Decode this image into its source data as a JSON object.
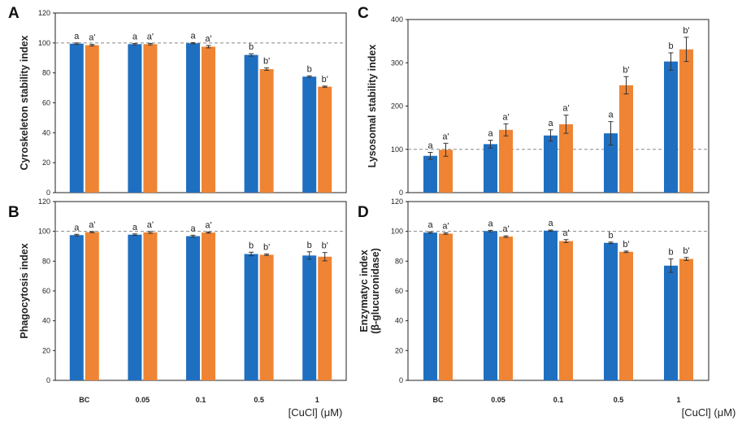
{
  "colors": {
    "series1": "#1f6fc1",
    "series2": "#ef8434",
    "axis": "#222222",
    "reference": "#888888",
    "errorbar": "#333333"
  },
  "x_axis_title": "[CuCl] (μM)",
  "chart_data": [
    {
      "panel": "A",
      "type": "bar",
      "ylabel": "Cyroskeleton stability index",
      "categories": [
        "BC",
        "0.05",
        "0.1",
        "0.5",
        "1"
      ],
      "ylim": [
        0,
        120
      ],
      "yticks": [
        0,
        20,
        40,
        60,
        80,
        100,
        120
      ],
      "reference_line": 100,
      "series": [
        {
          "name": "series 1",
          "values": [
            99.5,
            99.2,
            99.8,
            92.0,
            77.5
          ],
          "errors": [
            0.5,
            0.5,
            0.4,
            0.8,
            0.5
          ],
          "labels": [
            "a",
            "a",
            "a",
            "b",
            "b"
          ]
        },
        {
          "name": "series 2",
          "values": [
            98.5,
            99.2,
            97.5,
            82.5,
            70.8
          ],
          "errors": [
            0.5,
            0.5,
            0.8,
            0.8,
            0.4
          ],
          "labels": [
            "a'",
            "a'",
            "a'",
            "b'",
            "b'"
          ]
        }
      ]
    },
    {
      "panel": "B",
      "type": "bar",
      "ylabel": "Phagocytosis index",
      "categories": [
        "BC",
        "0.05",
        "0.1",
        "0.5",
        "1"
      ],
      "ylim": [
        0,
        120
      ],
      "yticks": [
        0,
        20,
        40,
        60,
        80,
        100,
        120
      ],
      "reference_line": 100,
      "series": [
        {
          "name": "series 1",
          "values": [
            97.5,
            97.8,
            96.8,
            84.8,
            83.8
          ],
          "errors": [
            0.5,
            0.5,
            0.6,
            1.2,
            2.5
          ],
          "labels": [
            "a",
            "a",
            "a",
            "b",
            "b"
          ]
        },
        {
          "name": "series 2",
          "values": [
            99.5,
            99.3,
            99.2,
            84.3,
            83.0
          ],
          "errors": [
            0.4,
            0.6,
            0.4,
            0.5,
            2.8
          ],
          "labels": [
            "a'",
            "a'",
            "a'",
            "b'",
            "b'"
          ]
        }
      ]
    },
    {
      "panel": "C",
      "type": "bar",
      "ylabel": "Lysosomal stability index",
      "categories": [
        "BC",
        "0.05",
        "0.1",
        "0.5",
        "1"
      ],
      "ylim": [
        0,
        400
      ],
      "yticks": [
        0,
        100,
        200,
        300,
        400
      ],
      "reference_line": 100,
      "series": [
        {
          "name": "series 1",
          "values": [
            85,
            112,
            132,
            137,
            303
          ],
          "errors": [
            8,
            9,
            13,
            27,
            20
          ],
          "labels": [
            "a",
            "a",
            "a",
            "a",
            "b"
          ]
        },
        {
          "name": "series 2",
          "values": [
            99,
            145,
            158,
            248,
            331
          ],
          "errors": [
            15,
            14,
            21,
            20,
            28
          ],
          "labels": [
            "a'",
            "a'",
            "a'",
            "b'",
            "b'"
          ]
        }
      ]
    },
    {
      "panel": "D",
      "type": "bar",
      "ylabel": "Enzymatyc index",
      "ylabel2": "(β-glucuronidase)",
      "categories": [
        "BC",
        "0.05",
        "0.1",
        "0.5",
        "1"
      ],
      "ylim": [
        0,
        120
      ],
      "yticks": [
        0,
        20,
        40,
        60,
        80,
        100,
        120
      ],
      "reference_line": 100,
      "series": [
        {
          "name": "series 1",
          "values": [
            99.2,
            100.2,
            100.5,
            92.3,
            77.0
          ],
          "errors": [
            0.5,
            0.5,
            0.4,
            0.5,
            4.5
          ],
          "labels": [
            "a",
            "a",
            "a",
            "b",
            "b"
          ]
        },
        {
          "name": "series 2",
          "values": [
            98.5,
            96.5,
            93.5,
            86.3,
            81.5
          ],
          "errors": [
            0.5,
            0.5,
            1.0,
            0.5,
            1.0
          ],
          "labels": [
            "a'",
            "a'",
            "a'",
            "b'",
            "b'"
          ]
        }
      ]
    }
  ]
}
